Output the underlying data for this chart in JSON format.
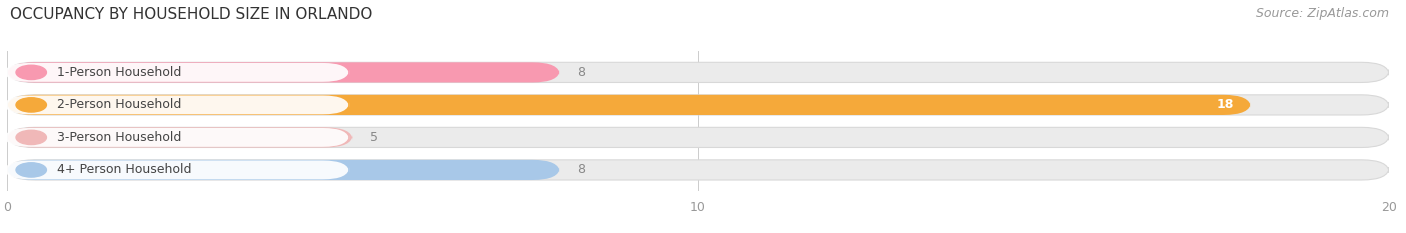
{
  "title": "OCCUPANCY BY HOUSEHOLD SIZE IN ORLANDO",
  "source": "Source: ZipAtlas.com",
  "categories": [
    "1-Person Household",
    "2-Person Household",
    "3-Person Household",
    "4+ Person Household"
  ],
  "values": [
    8,
    18,
    5,
    8
  ],
  "bar_colors": [
    "#F899B0",
    "#F5A93A",
    "#F0B8B8",
    "#A8C8E8"
  ],
  "track_color": "#EBEBEB",
  "xlim": [
    0,
    20
  ],
  "xticks": [
    0,
    10,
    20
  ],
  "value_label_color": "#888888",
  "title_fontsize": 11,
  "source_fontsize": 9,
  "label_fontsize": 9,
  "value_fontsize": 9,
  "bar_height": 0.62,
  "background_color": "#FFFFFF",
  "label_box_color": "#FFFFFF",
  "track_border_color": "#D8D8D8"
}
